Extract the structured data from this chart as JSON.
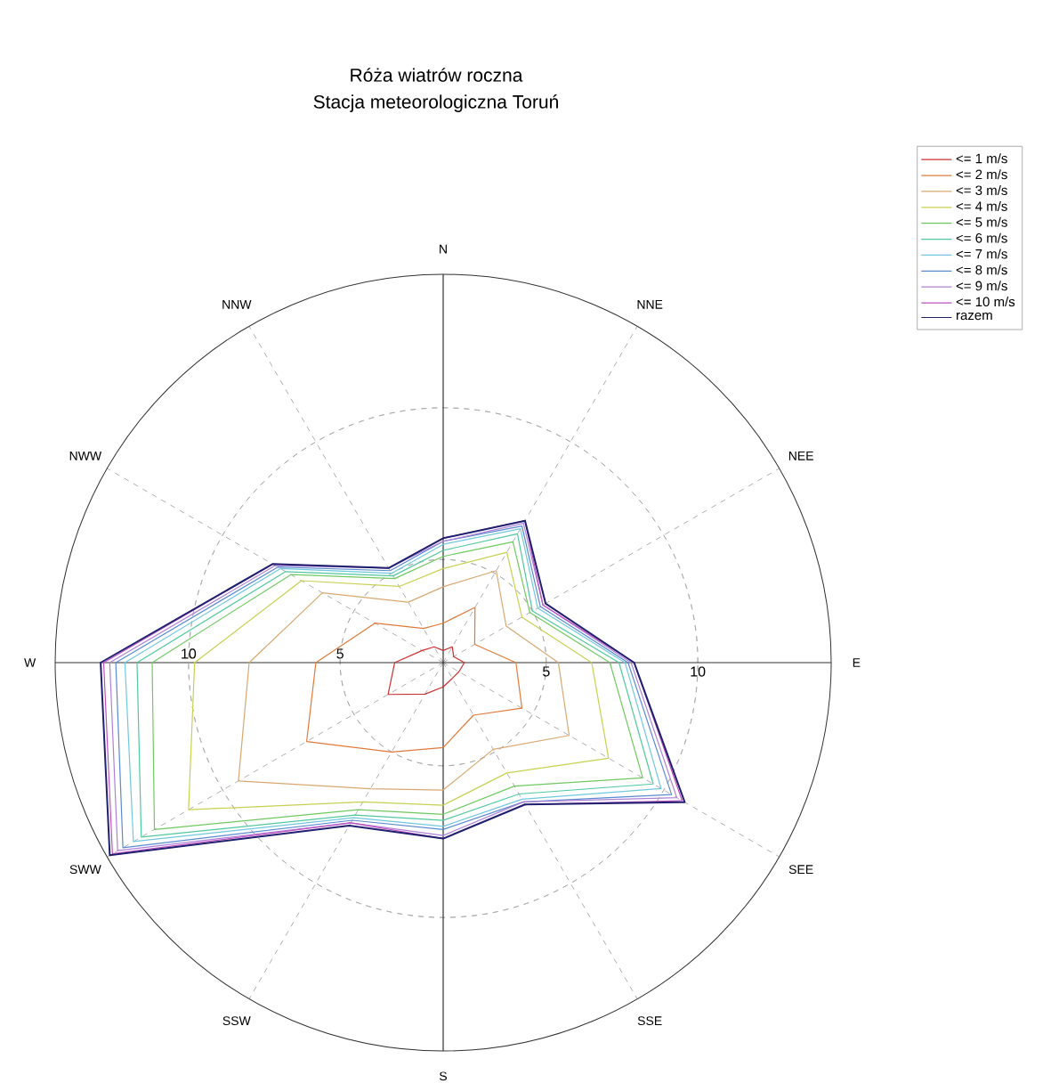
{
  "chart_data": {
    "type": "radar",
    "title": "Róża wiatrów roczna",
    "subtitle": "Stacja meteorologiczna Toruń",
    "categories": [
      "N",
      "NNE",
      "NEE",
      "E",
      "SEE",
      "SSE",
      "S",
      "SSW",
      "SWW",
      "W",
      "NWW",
      "NNW"
    ],
    "ylim": [
      1.6,
      14.4
    ],
    "yticks": [
      5,
      10,
      5,
      10
    ],
    "grid": true,
    "legend": "top right",
    "series": [
      {
        "name": "<= 1 m/s",
        "color": "#cc3030",
        "values": [
          2.0,
          2.2,
          2.0,
          2.3,
          2.2,
          2.2,
          2.4,
          2.8,
          3.7,
          3.2,
          2.4,
          2.2
        ]
      },
      {
        "name": "<= 2 m/s",
        "color": "#e07a3a",
        "values": [
          2.9,
          3.7,
          2.8,
          4.0,
          4.6,
          3.6,
          4.4,
          5.0,
          6.8,
          5.8,
          4.2,
          2.9
        ]
      },
      {
        "name": "<= 3 m/s",
        "color": "#d8a870",
        "values": [
          4.1,
          5.1,
          4.0,
          5.4,
          6.4,
          4.9,
          5.8,
          6.4,
          9.4,
          8.0,
          6.2,
          3.9
        ]
      },
      {
        "name": "<= 4 m/s",
        "color": "#c8d050",
        "values": [
          4.7,
          5.8,
          4.6,
          6.5,
          7.9,
          5.8,
          6.3,
          6.9,
          11.3,
          9.8,
          7.0,
          4.5
        ]
      },
      {
        "name": "<= 5 m/s",
        "color": "#70c860",
        "values": [
          5.1,
          6.2,
          4.9,
          7.1,
          9.2,
          6.3,
          6.6,
          7.2,
          12.6,
          11.2,
          7.4,
          4.8
        ]
      },
      {
        "name": "<= 6 m/s",
        "color": "#50c8a0",
        "values": [
          5.3,
          6.5,
          5.0,
          7.4,
          9.6,
          6.6,
          6.8,
          7.4,
          13.1,
          11.7,
          7.6,
          4.9
        ]
      },
      {
        "name": "<= 7 m/s",
        "color": "#70c8e0",
        "values": [
          5.5,
          6.7,
          5.2,
          7.6,
          9.9,
          6.8,
          7.0,
          7.5,
          13.4,
          12.1,
          7.8,
          5.0
        ]
      },
      {
        "name": "<= 8 m/s",
        "color": "#5a8ad0",
        "values": [
          5.6,
          6.8,
          5.3,
          7.7,
          10.3,
          6.9,
          7.1,
          7.6,
          13.8,
          12.4,
          7.9,
          5.1
        ]
      },
      {
        "name": "<= 9 m/s",
        "color": "#b080d8",
        "values": [
          5.6,
          6.9,
          5.4,
          7.8,
          10.5,
          6.9,
          7.3,
          7.7,
          14.0,
          12.6,
          8.0,
          5.2
        ]
      },
      {
        "name": "<= 10 m/s",
        "color": "#c050c0",
        "values": [
          5.7,
          7.0,
          5.4,
          7.9,
          10.7,
          7.0,
          7.4,
          7.7,
          14.2,
          12.8,
          8.1,
          5.2
        ]
      },
      {
        "name": "razem",
        "color": "#202070",
        "values": [
          5.7,
          7.0,
          5.5,
          7.9,
          10.8,
          7.0,
          7.4,
          7.8,
          14.3,
          12.9,
          8.1,
          5.2
        ]
      }
    ]
  }
}
